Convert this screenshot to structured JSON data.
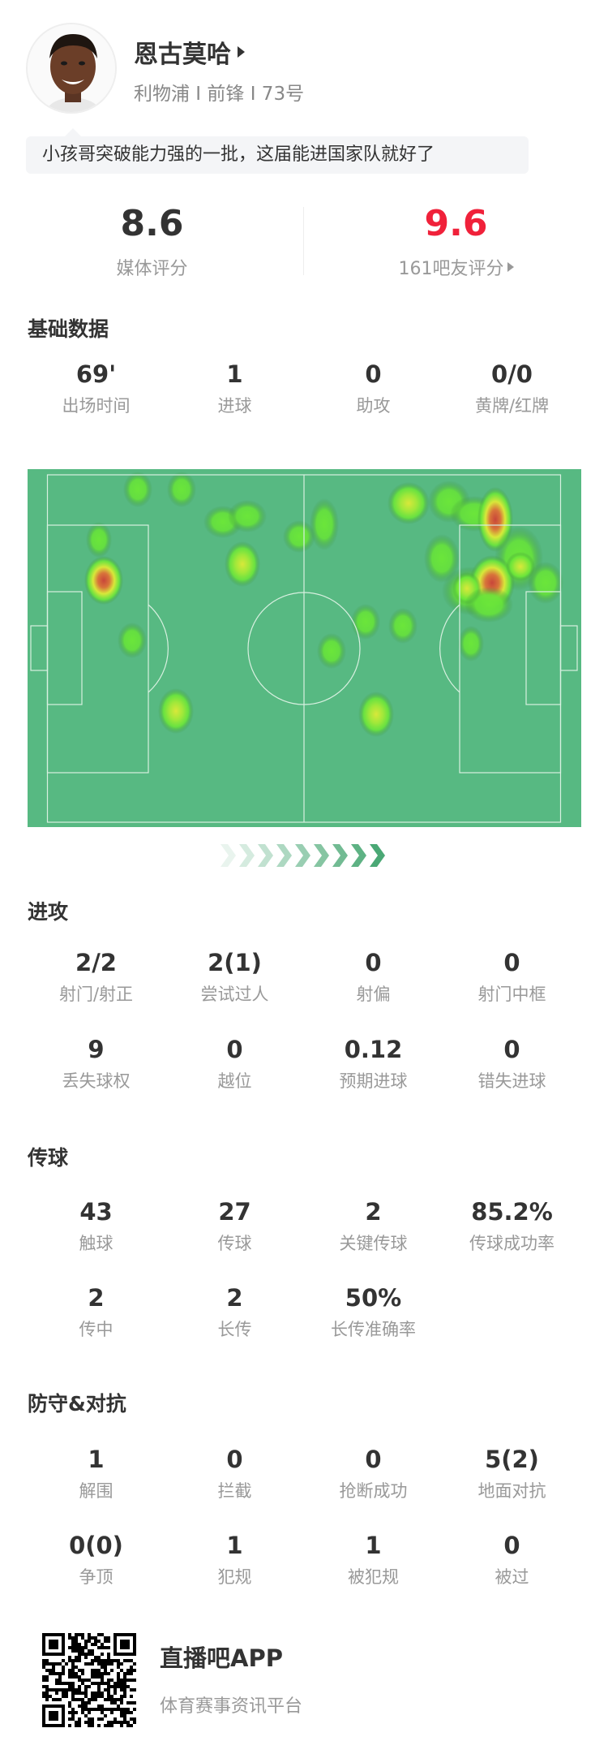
{
  "player": {
    "name": "恩古莫哈",
    "info": "利物浦 I 前锋 I 73号",
    "comment": "小孩哥突破能力强的一批，这届能进国家队就好了"
  },
  "ratings": {
    "media": {
      "value": "8.6",
      "label": "媒体评分"
    },
    "fans": {
      "value": "9.6",
      "label": "161吧友评分",
      "color": "#f0213a"
    }
  },
  "basic": {
    "title": "基础数据",
    "items": [
      {
        "v": "69'",
        "l": "出场时间"
      },
      {
        "v": "1",
        "l": "进球"
      },
      {
        "v": "0",
        "l": "助攻"
      },
      {
        "v": "0/0",
        "l": "黄牌/红牌"
      }
    ]
  },
  "attack": {
    "title": "进攻",
    "rows": [
      [
        {
          "v": "2/2",
          "l": "射门/射正"
        },
        {
          "v": "2(1)",
          "l": "尝试过人"
        },
        {
          "v": "0",
          "l": "射偏"
        },
        {
          "v": "0",
          "l": "射门中框"
        }
      ],
      [
        {
          "v": "9",
          "l": "丢失球权"
        },
        {
          "v": "0",
          "l": "越位"
        },
        {
          "v": "0.12",
          "l": "预期进球"
        },
        {
          "v": "0",
          "l": "错失进球"
        }
      ]
    ]
  },
  "passing": {
    "title": "传球",
    "rows": [
      [
        {
          "v": "43",
          "l": "触球"
        },
        {
          "v": "27",
          "l": "传球"
        },
        {
          "v": "2",
          "l": "关键传球"
        },
        {
          "v": "85.2%",
          "l": "传球成功率"
        }
      ],
      [
        {
          "v": "2",
          "l": "传中"
        },
        {
          "v": "2",
          "l": "长传"
        },
        {
          "v": "50%",
          "l": "长传准确率"
        }
      ]
    ]
  },
  "defense": {
    "title": "防守&对抗",
    "rows": [
      [
        {
          "v": "1",
          "l": "解围"
        },
        {
          "v": "0",
          "l": "拦截"
        },
        {
          "v": "0",
          "l": "抢断成功"
        },
        {
          "v": "5(2)",
          "l": "地面对抗"
        }
      ],
      [
        {
          "v": "0(0)",
          "l": "争顶"
        },
        {
          "v": "1",
          "l": "犯规"
        },
        {
          "v": "1",
          "l": "被犯规"
        },
        {
          "v": "0",
          "l": "被过"
        }
      ]
    ]
  },
  "footer": {
    "app": "直播吧APP",
    "tagline": "体育赛事资讯平台"
  },
  "colors": {
    "pitch": "#57b982",
    "lines": "#d8f0e0",
    "attack_arrow": "#4aa875"
  }
}
